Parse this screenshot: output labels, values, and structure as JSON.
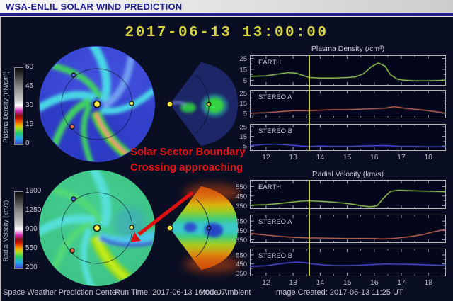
{
  "header": {
    "title": "WSA-ENLIL SOLAR WIND PREDICTION"
  },
  "datetime": "2017-06-13 13:00:00",
  "annotation": {
    "line1": "Solar Sector Boundary",
    "line2": "Crossing approaching"
  },
  "colorbars": [
    {
      "id": "plasma-density",
      "title": "Plasma Density (r²N/cm³)",
      "min": 0,
      "max": 60,
      "ticks": [
        0,
        15,
        30,
        45,
        60
      ]
    },
    {
      "id": "radial-velocity",
      "title": "Radial Velocity (km/s)",
      "min": 200,
      "max": 1600,
      "ticks": [
        200,
        550,
        900,
        1250,
        1600
      ]
    }
  ],
  "status_bar": {
    "center_name": "Space Weather Prediction Center",
    "run_time": "Run Time: 2017-06-13 10:00 UT",
    "mode": "Mode: Ambient",
    "created": "Image Created: 2017-06-13 11:25 UT"
  },
  "colors": {
    "accent_yellow": "#d8d443",
    "header_blue": "#1e1e96",
    "annotation_red": "#e21414",
    "earth_line": "#8aba50",
    "stereo_a_line": "#b45f4e",
    "stereo_b_line": "#4444cc",
    "time_marker": "#d2d240"
  },
  "chart_data": [
    {
      "id": "plasma-density",
      "type": "line",
      "title": "Plasma Density (/cm³)",
      "xlim": [
        11.4,
        18.65
      ],
      "x_ticks": [
        12,
        13,
        14,
        15,
        16,
        17,
        18
      ],
      "ylim": [
        0,
        28
      ],
      "y_ticks": [
        5,
        15,
        25
      ],
      "marker_x": 13.6,
      "series": [
        {
          "name": "EARTH",
          "color": "#8aba50",
          "x": [
            11.4,
            12.0,
            12.4,
            12.8,
            13.1,
            13.35,
            13.6,
            14.0,
            14.5,
            15.0,
            15.3,
            15.6,
            15.9,
            16.15,
            16.4,
            16.6,
            16.85,
            17.1,
            17.5,
            18.0,
            18.4,
            18.65
          ],
          "y": [
            8.5,
            9.0,
            10.5,
            12.0,
            11.5,
            9.5,
            7.5,
            7.0,
            7.0,
            7.5,
            8.0,
            11.0,
            17.5,
            21.0,
            18.0,
            10.0,
            6.0,
            5.0,
            4.5,
            4.5,
            4.8,
            5.0
          ]
        },
        {
          "name": "STEREO A",
          "color": "#b45f4e",
          "x": [
            11.4,
            12.0,
            12.5,
            13.0,
            13.5,
            14.0,
            14.5,
            15.0,
            15.5,
            16.0,
            16.4,
            16.75,
            17.1,
            17.5,
            18.0,
            18.4,
            18.65
          ],
          "y": [
            5.0,
            5.5,
            6.5,
            7.5,
            7.5,
            8.0,
            8.5,
            8.5,
            9.0,
            9.5,
            10.0,
            11.5,
            10.0,
            9.0,
            7.5,
            6.0,
            5.0
          ]
        },
        {
          "name": "STEREO B",
          "color": "#4646cc",
          "x": [
            11.4,
            12.0,
            12.3,
            12.8,
            13.3,
            13.6,
            14.0,
            14.5,
            15.0,
            15.5,
            16.0,
            16.4,
            17.0,
            17.5,
            18.0,
            18.65
          ],
          "y": [
            5.5,
            6.8,
            7.0,
            6.2,
            5.0,
            4.6,
            5.0,
            4.6,
            4.6,
            5.0,
            5.4,
            5.5,
            4.6,
            4.6,
            4.2,
            4.2
          ]
        }
      ]
    },
    {
      "id": "radial-velocity",
      "type": "line",
      "title": "Radial Velocity (km/s)",
      "xlim": [
        11.4,
        18.65
      ],
      "x_ticks": [
        12,
        13,
        14,
        15,
        16,
        17,
        18
      ],
      "ylim": [
        315,
        620
      ],
      "y_ticks": [
        350,
        450,
        550
      ],
      "marker_x": 13.6,
      "series": [
        {
          "name": "EARTH",
          "color": "#8aba50",
          "x": [
            11.4,
            12.0,
            12.5,
            13.0,
            13.3,
            13.6,
            14.0,
            14.4,
            14.8,
            15.2,
            15.55,
            15.85,
            16.1,
            16.35,
            16.6,
            16.9,
            17.3,
            17.8,
            18.2,
            18.65
          ],
          "y": [
            355,
            360,
            372,
            388,
            397,
            400,
            395,
            388,
            378,
            365,
            348,
            338,
            348,
            430,
            500,
            512,
            508,
            503,
            500,
            496
          ]
        },
        {
          "name": "STEREO A",
          "color": "#b45f4e",
          "x": [
            11.4,
            12.0,
            12.5,
            13.0,
            13.5,
            14.0,
            14.5,
            15.0,
            15.5,
            16.0,
            16.3,
            16.7,
            17.0,
            17.4,
            17.8,
            18.2,
            18.65
          ],
          "y": [
            418,
            400,
            385,
            375,
            370,
            368,
            365,
            362,
            364,
            362,
            358,
            363,
            372,
            385,
            405,
            435,
            462
          ]
        },
        {
          "name": "STEREO B",
          "color": "#4646cc",
          "x": [
            11.4,
            12.0,
            12.4,
            12.8,
            13.1,
            13.4,
            13.7,
            14.1,
            14.5,
            15.0,
            15.5,
            16.0,
            16.4,
            16.8,
            17.3,
            17.8,
            18.2,
            18.65
          ],
          "y": [
            423,
            430,
            448,
            463,
            470,
            465,
            452,
            440,
            433,
            432,
            436,
            444,
            450,
            449,
            446,
            442,
            438,
            433
          ]
        }
      ]
    }
  ]
}
